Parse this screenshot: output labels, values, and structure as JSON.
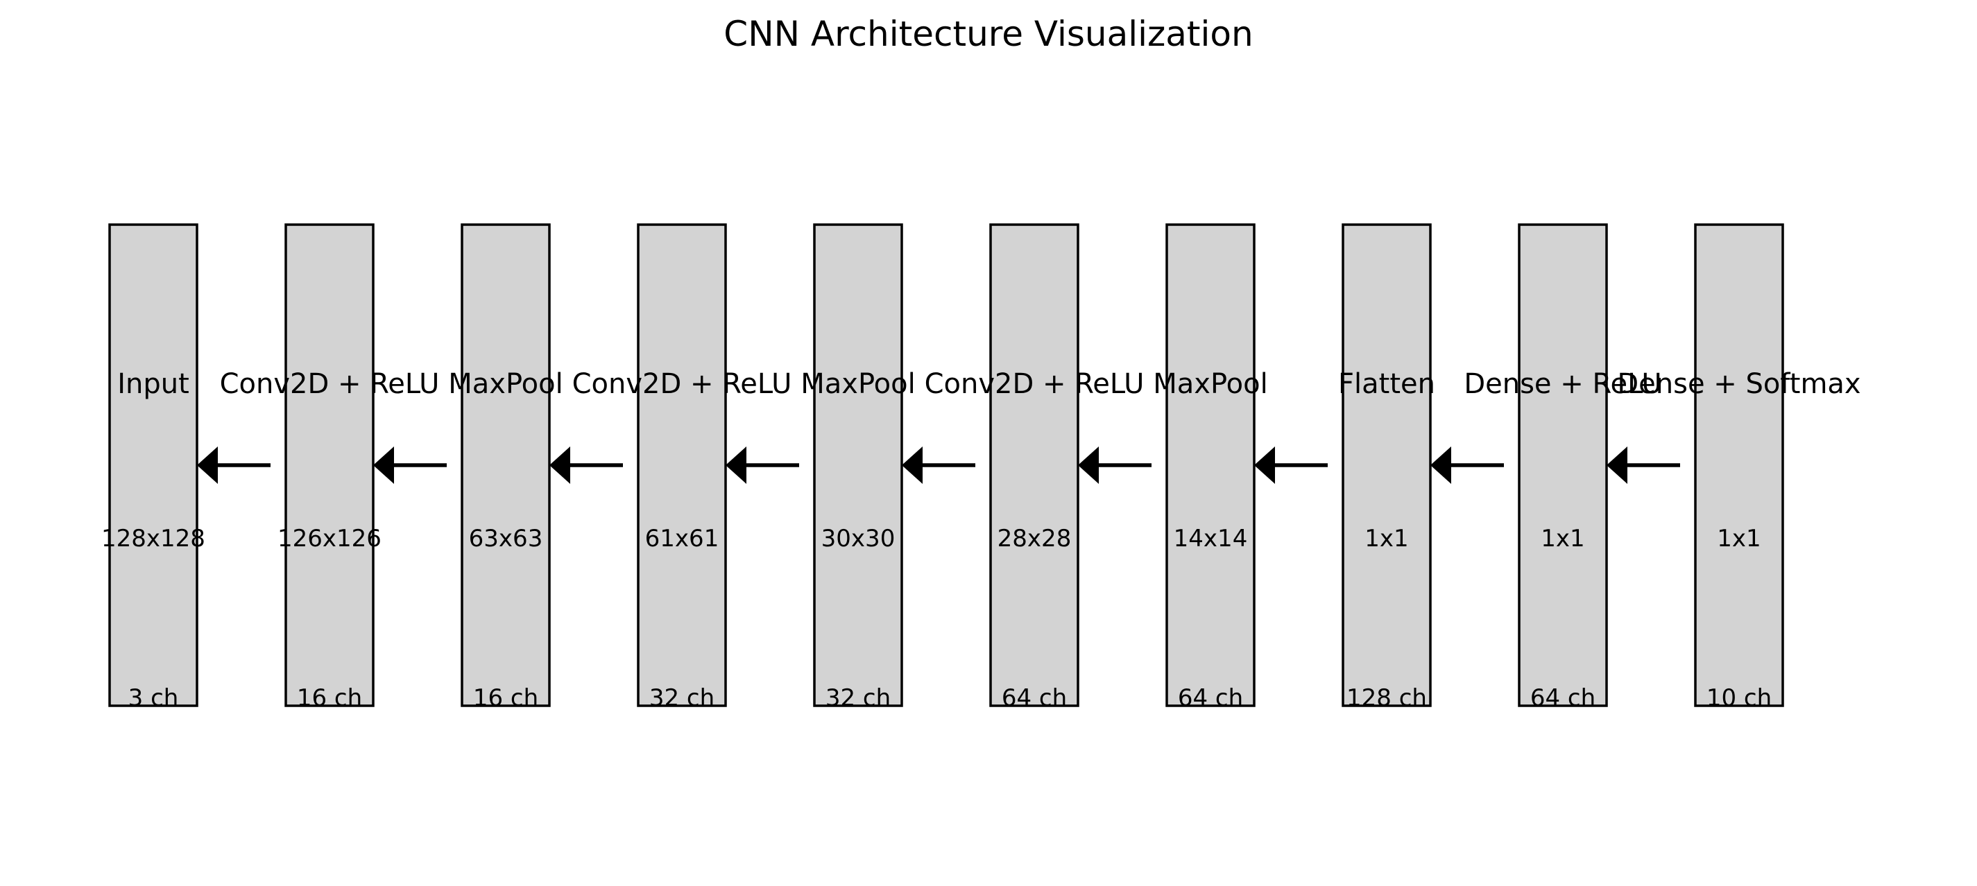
{
  "title": "CNN Architecture Visualization",
  "layers": [
    {
      "name": "Input",
      "size": "128x128",
      "channels": "3 ch"
    },
    {
      "name": "Conv2D + ReLU",
      "size": "126x126",
      "channels": "16 ch"
    },
    {
      "name": "MaxPool",
      "size": "63x63",
      "channels": "16 ch"
    },
    {
      "name": "Conv2D + ReLU",
      "size": "61x61",
      "channels": "32 ch"
    },
    {
      "name": "MaxPool",
      "size": "30x30",
      "channels": "32 ch"
    },
    {
      "name": "Conv2D + ReLU",
      "size": "28x28",
      "channels": "64 ch"
    },
    {
      "name": "MaxPool",
      "size": "14x14",
      "channels": "64 ch"
    },
    {
      "name": "Flatten",
      "size": "1x1",
      "channels": "128 ch"
    },
    {
      "name": "Dense + ReLU",
      "size": "1x1",
      "channels": "64 ch"
    },
    {
      "name": "Dense + Softmax",
      "size": "1x1",
      "channels": "10 ch"
    }
  ],
  "colors": {
    "box_fill": "#d3d3d3",
    "box_stroke": "#000000",
    "arrow": "#000000"
  },
  "arrow_direction": "right-to-left"
}
